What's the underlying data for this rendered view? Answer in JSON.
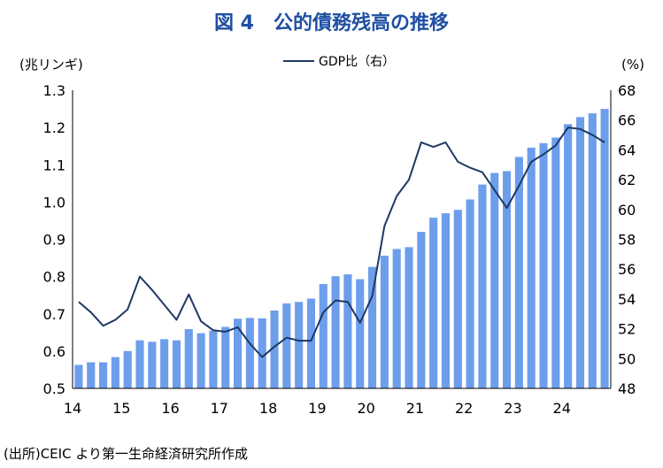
{
  "chart_data": {
    "type": "bar+line",
    "title": "図 4　公的債務残高の推移",
    "source": "(出所)CEIC より第一生命経済研究所作成",
    "left_unit": "(兆リンギ)",
    "right_unit": "(%)",
    "x_tick_labels": [
      "14",
      "15",
      "16",
      "17",
      "18",
      "19",
      "20",
      "21",
      "22",
      "23",
      "24"
    ],
    "left_axis": {
      "min": 0.5,
      "max": 1.3,
      "step": 0.1,
      "tick_labels": [
        "0.5",
        "0.6",
        "0.7",
        "0.8",
        "0.9",
        "1.0",
        "1.1",
        "1.2",
        "1.3"
      ]
    },
    "right_axis": {
      "min": 48,
      "max": 68,
      "step": 2,
      "tick_labels": [
        "48",
        "50",
        "52",
        "54",
        "56",
        "58",
        "60",
        "62",
        "64",
        "66",
        "68"
      ]
    },
    "series": [
      {
        "name": "",
        "type": "bar",
        "axis": "left",
        "color": "#6d9eeb",
        "x": [
          "14Q1",
          "14Q2",
          "14Q3",
          "14Q4",
          "15Q1",
          "15Q2",
          "15Q3",
          "15Q4",
          "16Q1",
          "16Q2",
          "16Q3",
          "16Q4",
          "17Q1",
          "17Q2",
          "17Q3",
          "17Q4",
          "18Q1",
          "18Q2",
          "18Q3",
          "18Q4",
          "19Q1",
          "19Q2",
          "19Q3",
          "19Q4",
          "20Q1",
          "20Q2",
          "20Q3",
          "20Q4",
          "21Q1",
          "21Q2",
          "21Q3",
          "21Q4",
          "22Q1",
          "22Q2",
          "22Q3",
          "22Q4",
          "23Q1",
          "23Q2",
          "23Q3",
          "23Q4",
          "24Q1",
          "24Q2",
          "24Q3",
          "24Q4"
        ],
        "values": [
          0.563,
          0.57,
          0.57,
          0.584,
          0.6,
          0.629,
          0.625,
          0.632,
          0.629,
          0.659,
          0.648,
          0.655,
          0.665,
          0.687,
          0.689,
          0.688,
          0.709,
          0.728,
          0.732,
          0.741,
          0.78,
          0.801,
          0.806,
          0.793,
          0.826,
          0.856,
          0.874,
          0.879,
          0.92,
          0.958,
          0.97,
          0.979,
          1.007,
          1.047,
          1.078,
          1.083,
          1.121,
          1.146,
          1.158,
          1.173,
          1.209,
          1.228,
          1.238,
          1.25
        ]
      },
      {
        "name": "GDP比（右）",
        "type": "line",
        "axis": "right",
        "color": "#1f3864",
        "values": [
          53.8,
          53.1,
          52.2,
          52.6,
          53.3,
          55.5,
          54.6,
          53.6,
          52.6,
          54.3,
          52.5,
          51.9,
          51.8,
          52.1,
          51.0,
          50.1,
          50.8,
          51.4,
          51.2,
          51.2,
          53.1,
          53.9,
          53.8,
          52.4,
          54.2,
          58.9,
          60.9,
          62.0,
          64.5,
          64.2,
          64.5,
          63.2,
          62.8,
          62.5,
          61.3,
          60.1,
          61.6,
          63.2,
          63.7,
          64.3,
          65.5,
          65.4,
          65.0,
          64.5
        ]
      }
    ],
    "legend": {
      "position": "top-center"
    },
    "grid": false
  }
}
